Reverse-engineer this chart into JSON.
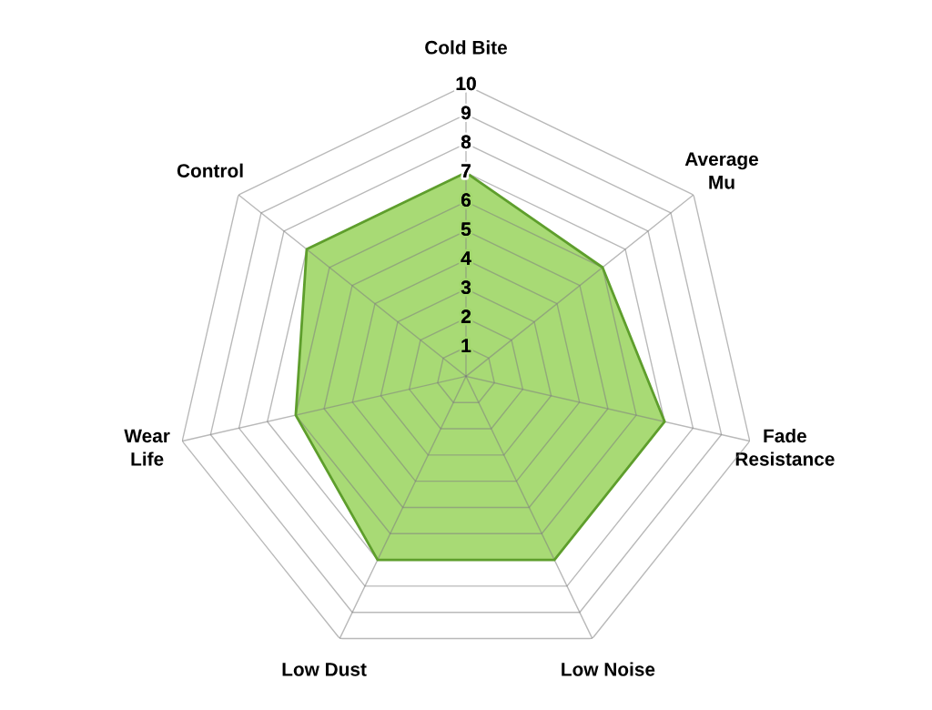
{
  "chart_data": {
    "type": "radar",
    "categories": [
      "Cold Bite",
      "Average\nMu",
      "Fade\nResistance",
      "Low Noise",
      "Low Dust",
      "Wear\nLife",
      "Control"
    ],
    "series": [
      {
        "color": "#a3d86e",
        "values": [
          7,
          6,
          7,
          7,
          7,
          6,
          7
        ]
      }
    ],
    "ylim": [
      0,
      10
    ],
    "yticks": [
      1,
      2,
      3,
      4,
      5,
      6,
      7,
      8,
      9,
      10
    ],
    "grid": true,
    "marker": "none"
  }
}
